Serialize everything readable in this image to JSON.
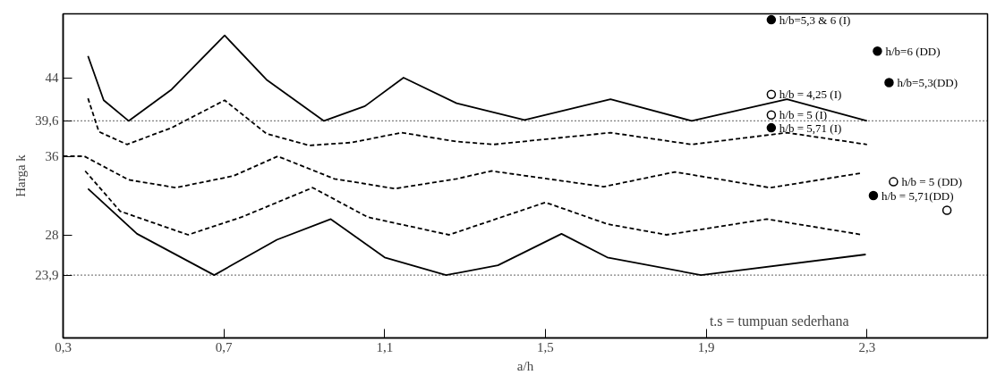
{
  "chart_data": {
    "type": "line",
    "xlabel": "a/h",
    "ylabel": "Harga k",
    "xlim": [
      0.3,
      2.6
    ],
    "ylim": [
      17.5,
      50.5
    ],
    "xticks": [
      {
        "value": 0.3,
        "label": "0,3"
      },
      {
        "value": 0.7,
        "label": "0,7"
      },
      {
        "value": 1.1,
        "label": "1,1"
      },
      {
        "value": 1.5,
        "label": "1,5"
      },
      {
        "value": 1.9,
        "label": "1,9"
      },
      {
        "value": 2.3,
        "label": "2,3"
      }
    ],
    "yticks": [
      {
        "value": 23.9,
        "label": "23,9"
      },
      {
        "value": 28,
        "label": "28"
      },
      {
        "value": 36,
        "label": "36"
      },
      {
        "value": 39.6,
        "label": "39,6"
      },
      {
        "value": 44,
        "label": "44"
      }
    ],
    "grid": false,
    "marker": "none",
    "series": [
      {
        "color": "#000000",
        "line_style": "solid",
        "x": [
          0.362,
          0.401,
          0.463,
          0.57,
          0.702,
          0.806,
          0.949,
          1.051,
          1.147,
          1.279,
          1.448,
          1.662,
          1.864,
          2.101,
          2.3
        ],
        "values": [
          46.2,
          41.7,
          39.6,
          42.8,
          48.3,
          43.8,
          39.6,
          41.1,
          44.0,
          41.4,
          39.7,
          41.8,
          39.6,
          41.8,
          39.6
        ]
      },
      {
        "color": "#000000",
        "line_style": "dashed",
        "x": [
          0.362,
          0.389,
          0.459,
          0.57,
          0.702,
          0.806,
          0.912,
          1.018,
          1.142,
          1.279,
          1.371,
          1.662,
          1.864,
          2.101,
          2.3
        ],
        "values": [
          41.9,
          38.5,
          37.2,
          38.9,
          41.7,
          38.3,
          37.1,
          37.4,
          38.4,
          37.5,
          37.2,
          38.4,
          37.2,
          38.4,
          37.2
        ]
      },
      {
        "color": "#000000",
        "line_style": "dashed",
        "x": [
          0.3,
          0.353,
          0.463,
          0.581,
          0.724,
          0.834,
          0.975,
          1.126,
          1.279,
          1.366,
          1.645,
          1.822,
          2.059,
          2.289
        ],
        "values": [
          36.0,
          36.0,
          33.6,
          32.8,
          34.0,
          36.0,
          33.7,
          32.7,
          33.7,
          34.5,
          32.9,
          34.4,
          32.8,
          34.3
        ]
      },
      {
        "color": "#000000",
        "line_style": "dashed",
        "x": [
          0.355,
          0.442,
          0.611,
          0.744,
          0.921,
          1.058,
          1.26,
          1.5,
          1.654,
          1.801,
          2.051,
          2.289
        ],
        "values": [
          34.5,
          30.4,
          28.0,
          29.8,
          32.8,
          29.8,
          28.0,
          31.3,
          29.1,
          28.0,
          29.6,
          28.0
        ]
      },
      {
        "color": "#000000",
        "line_style": "solid",
        "x": [
          0.362,
          0.484,
          0.676,
          0.832,
          0.966,
          1.1,
          1.253,
          1.382,
          1.54,
          1.654,
          1.887,
          2.297
        ],
        "values": [
          32.7,
          28.1,
          23.9,
          27.5,
          29.6,
          25.7,
          23.9,
          24.9,
          28.1,
          25.7,
          23.9,
          26.0
        ]
      },
      {
        "type": "scatter",
        "marker": "circle",
        "color": "#000000",
        "name": "h/b=5,3 & 6 (I)",
        "x": [
          2.062
        ],
        "values": [
          49.9
        ]
      },
      {
        "type": "scatter",
        "marker": "circle",
        "color": "#000000",
        "name": "h/b=6 (DD)",
        "x": [
          2.326
        ],
        "values": [
          46.7
        ]
      },
      {
        "type": "scatter",
        "marker": "circle",
        "color": "#000000",
        "name": "h/b=5,3(DD)",
        "x": [
          2.355
        ],
        "values": [
          43.5
        ]
      },
      {
        "type": "scatter",
        "marker": "circle",
        "color": "#ffffff",
        "name": "h/b = 4,25 (I)",
        "x": [
          2.062
        ],
        "values": [
          42.3
        ]
      },
      {
        "type": "scatter",
        "marker": "circle",
        "color": "#ffffff",
        "name": "h/b = 5 (I)",
        "x": [
          2.062
        ],
        "values": [
          40.2
        ]
      },
      {
        "type": "scatter",
        "marker": "circle",
        "color": "#000000",
        "name": "h/b = 5,71 (I)",
        "x": [
          2.062
        ],
        "values": [
          38.9
        ]
      },
      {
        "type": "scatter",
        "marker": "circle",
        "color": "#ffffff",
        "name": "h/b = 5 (DD)",
        "x": [
          2.366
        ],
        "values": [
          33.4
        ]
      },
      {
        "type": "scatter",
        "marker": "circle",
        "color": "#000000",
        "name": "h/b = 5,71(DD)",
        "x": [
          2.316
        ],
        "values": [
          32.0
        ]
      },
      {
        "type": "scatter",
        "marker": "circle",
        "color": "#ffffff",
        "x": [
          2.499
        ],
        "values": [
          30.5
        ]
      }
    ],
    "ref_lines": [
      {
        "axis": "y",
        "value": 39.6,
        "line_style": "dotted",
        "color": "#000000"
      },
      {
        "axis": "y",
        "value": 23.9,
        "line_style": "dotted",
        "color": "#000000"
      }
    ],
    "annotations": [
      "t.s = tumpuan sederhana"
    ]
  }
}
